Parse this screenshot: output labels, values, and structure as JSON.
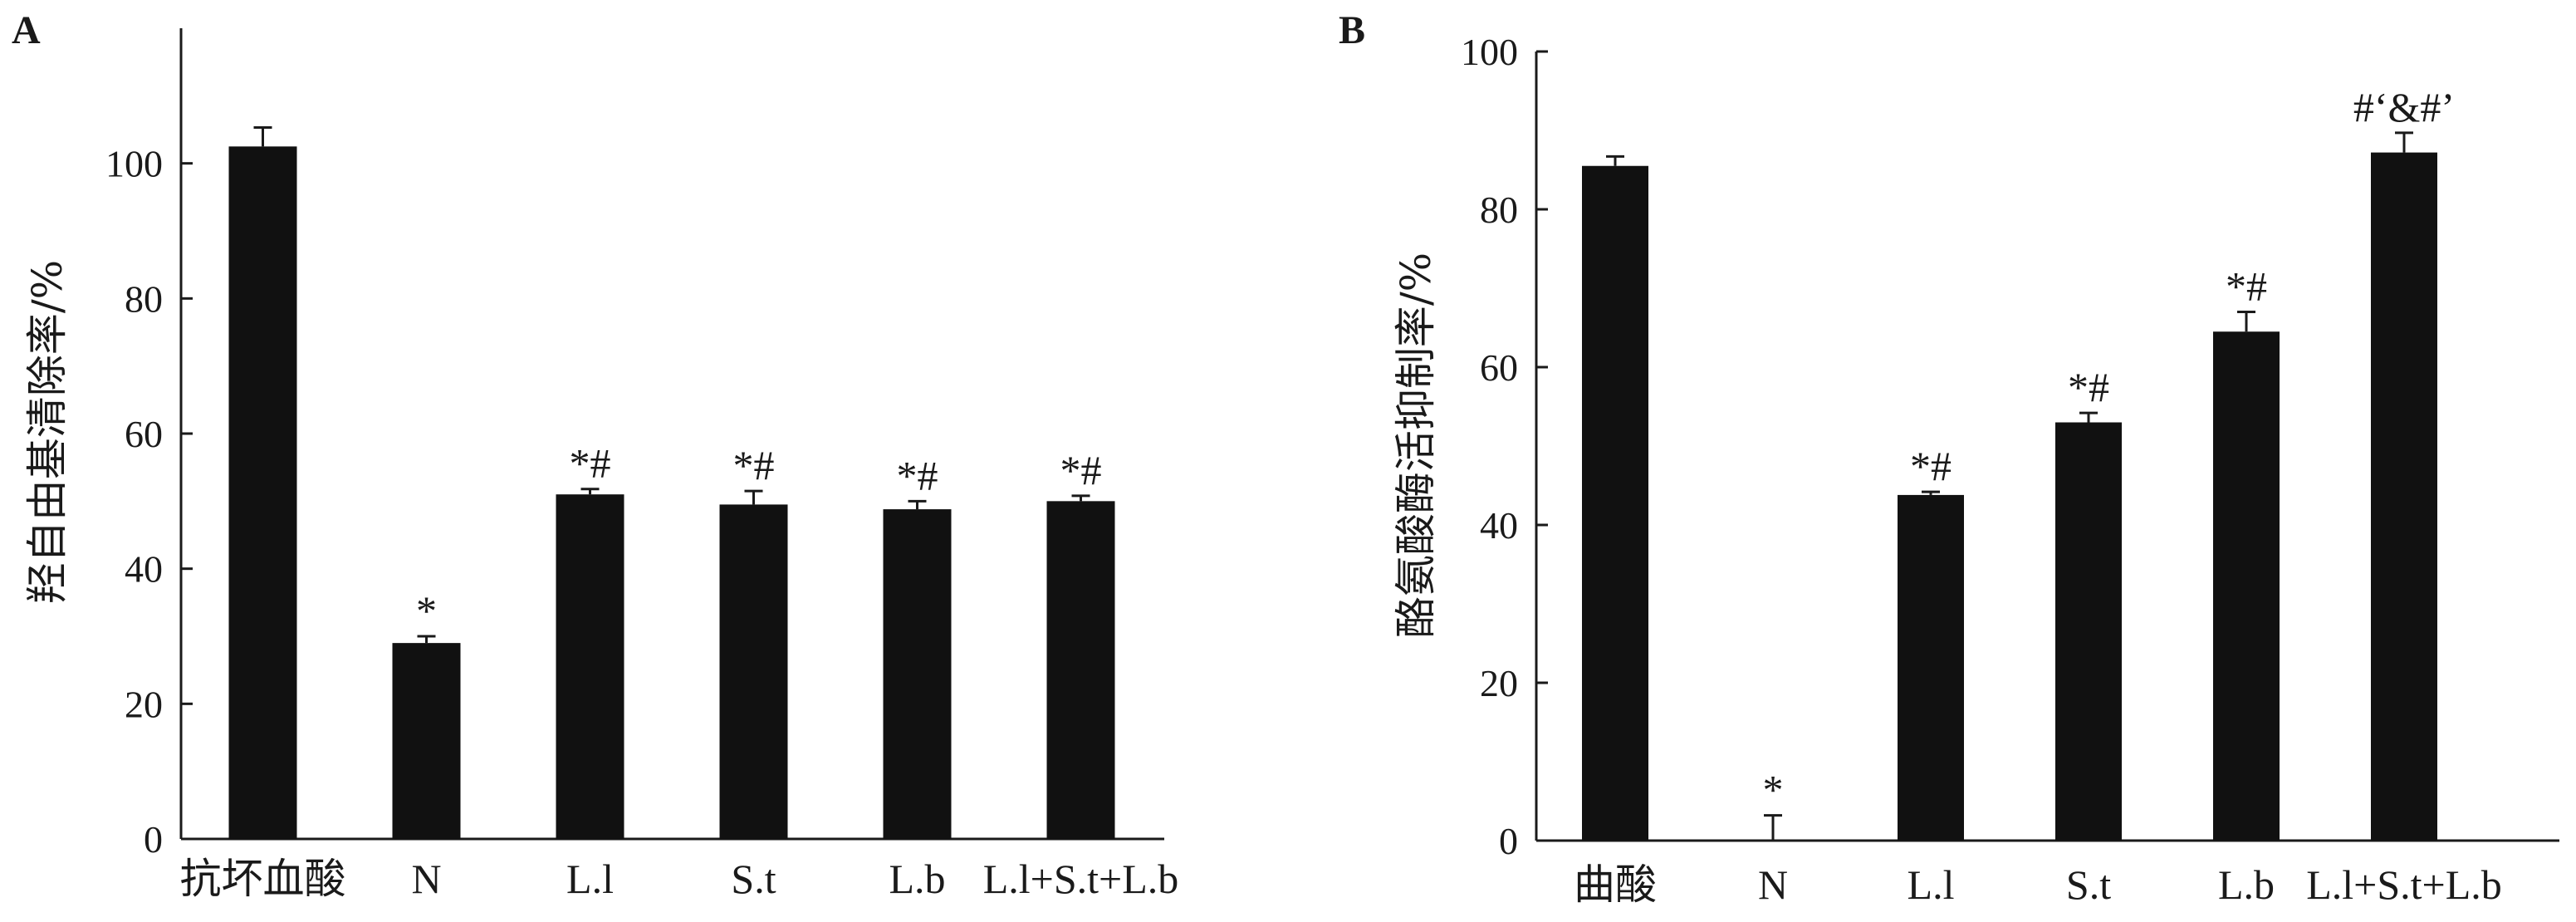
{
  "chart_data": [
    {
      "type": "bar",
      "panel_label": "A",
      "ylabel": "羟自由基清除率/%",
      "ylim": [
        0,
        120
      ],
      "yticks": [
        "0",
        "20",
        "40",
        "60",
        "80",
        "100"
      ],
      "categories": [
        "抗坏血酸",
        "N",
        "L.l",
        "S.t",
        "L.b",
        "L.l+S.t+L.b"
      ],
      "values": [
        102.5,
        29,
        51,
        49.5,
        48.8,
        50
      ],
      "errors": [
        2.8,
        1.0,
        0.8,
        2.0,
        1.2,
        0.8
      ],
      "annotations": [
        "",
        "*",
        "*#",
        "*#",
        "*#",
        "*#"
      ]
    },
    {
      "type": "bar",
      "panel_label": "B",
      "ylabel": "酪氨酸酶活抑制率/%",
      "ylim": [
        0,
        100
      ],
      "yticks": [
        "0",
        "20",
        "40",
        "60",
        "80",
        "100"
      ],
      "categories": [
        "曲酸",
        "N",
        "L.l",
        "S.t",
        "L.b",
        "L.l+S.t+L.b"
      ],
      "values": [
        85.5,
        0,
        43.8,
        53,
        64.5,
        87.2
      ],
      "errors": [
        1.2,
        3.2,
        0.4,
        1.2,
        2.5,
        2.5
      ],
      "annotations": [
        "",
        "*",
        "*#",
        "*#",
        "*#",
        "#‘&#’"
      ]
    }
  ]
}
